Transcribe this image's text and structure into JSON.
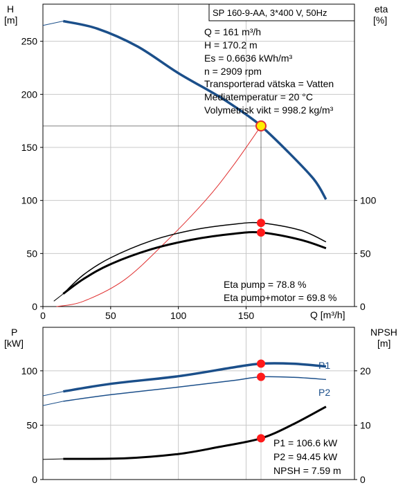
{
  "top": {
    "title": "SP 160-9-AA, 3*400 V, 50Hz",
    "left_axis": {
      "label_line1": "H",
      "label_line2": "[m]",
      "range": [
        0,
        285
      ],
      "ticks": [
        0,
        50,
        100,
        150,
        200,
        250
      ]
    },
    "right_axis": {
      "label_line1": "eta",
      "label_line2": "[%]",
      "range": [
        0,
        285
      ],
      "ticks": [
        0,
        50,
        100
      ]
    },
    "x_axis": {
      "label": "Q [m³/h]",
      "range": [
        0,
        230
      ],
      "ticks": [
        0,
        50,
        100,
        150
      ]
    },
    "info_lines": [
      "Q = 161 m³/h",
      "H = 170.2 m",
      "Es = 0.6636 kWh/m³",
      "n = 2909 rpm",
      "Transporterad vätska = Vatten",
      "Mediatemperatur = 20 °C",
      "Volymetrisk vikt = 998.2 kg/m³"
    ],
    "eta_lines": [
      "Eta pump = 78.8 %",
      "Eta pump+motor = 69.8 %"
    ]
  },
  "bottom": {
    "left_axis": {
      "label_line1": "P",
      "label_line2": "[kW]",
      "range": [
        0,
        140
      ],
      "ticks": [
        0,
        50,
        100
      ]
    },
    "right_axis": {
      "label_line1": "NPSH",
      "label_line2": "[m]",
      "range": [
        0,
        28
      ],
      "ticks": [
        0,
        10,
        20
      ]
    },
    "x_axis": {
      "range": [
        0,
        230
      ]
    },
    "series_labels": {
      "p1": "P1",
      "p2": "P2"
    },
    "info_lines": [
      "P1 = 106.6 kW",
      "P2 = 94.45 kW",
      "NPSH = 7.59 m"
    ]
  },
  "colors": {
    "head": "#1b4f8a",
    "power": "#1b4f8a",
    "efficiency": "#000000",
    "system": "#e03030",
    "marker": "#ff1a1a",
    "duty_fill": "#ffee00",
    "grid": "#c8c8c8"
  },
  "chart_data": [
    {
      "type": "line",
      "x_unit": "Q [m³/h]",
      "series": [
        {
          "key": "head",
          "axis": "left",
          "dashed_start": [
            [
              0,
              265
            ],
            [
              15,
              269
            ]
          ],
          "points": [
            [
              15,
              269
            ],
            [
              40,
              262
            ],
            [
              70,
              245
            ],
            [
              100,
              220
            ],
            [
              130,
              198
            ],
            [
              150,
              181
            ],
            [
              161,
              170.2
            ],
            [
              180,
              147
            ],
            [
              200,
              120
            ],
            [
              209,
              101
            ]
          ]
        },
        {
          "key": "system",
          "axis": "left",
          "points": [
            [
              10,
              0
            ],
            [
              30,
              5
            ],
            [
              60,
              25
            ],
            [
              90,
              60
            ],
            [
              120,
              100
            ],
            [
              140,
              132
            ],
            [
              161,
              170.2
            ]
          ]
        },
        {
          "key": "eta_pump",
          "axis": "right",
          "points": [
            [
              15,
              12
            ],
            [
              30,
              30
            ],
            [
              50,
              46
            ],
            [
              80,
              62
            ],
            [
              110,
              72
            ],
            [
              140,
              77.5
            ],
            [
              161,
              78.8
            ],
            [
              190,
              72
            ],
            [
              209,
              61
            ]
          ]
        },
        {
          "key": "eta_total",
          "axis": "right",
          "dashed_start": [
            [
              8,
              5
            ],
            [
              15,
              12
            ]
          ],
          "points": [
            [
              15,
              12
            ],
            [
              30,
              26
            ],
            [
              50,
              40
            ],
            [
              80,
              54
            ],
            [
              110,
              63
            ],
            [
              140,
              68.5
            ],
            [
              161,
              69.8
            ],
            [
              190,
              63
            ],
            [
              209,
              55
            ]
          ]
        }
      ],
      "markers": [
        {
          "x": 161,
          "y": 170.2,
          "axis": "left",
          "duty": true
        },
        {
          "x": 161,
          "y": 78.8,
          "axis": "right"
        },
        {
          "x": 161,
          "y": 69.8,
          "axis": "right"
        }
      ]
    },
    {
      "type": "line",
      "x_unit": "Q [m³/h]",
      "series": [
        {
          "key": "P1",
          "axis": "left",
          "dashed_start": [
            [
              0,
              77
            ],
            [
              15,
              81
            ]
          ],
          "points": [
            [
              15,
              81
            ],
            [
              50,
              88
            ],
            [
              100,
              95
            ],
            [
              140,
              103
            ],
            [
              161,
              106.6
            ],
            [
              185,
              106.5
            ],
            [
              209,
              104
            ]
          ]
        },
        {
          "key": "P2",
          "axis": "left",
          "dashed_start": [
            [
              0,
              68
            ],
            [
              15,
              72
            ]
          ],
          "points": [
            [
              15,
              72
            ],
            [
              50,
              78
            ],
            [
              100,
              85
            ],
            [
              140,
              91
            ],
            [
              161,
              94.45
            ],
            [
              185,
              94
            ],
            [
              209,
              92
            ]
          ]
        },
        {
          "key": "NPSH",
          "axis": "right",
          "dashed_start": [
            [
              0,
              3.7
            ],
            [
              15,
              3.8
            ]
          ],
          "points": [
            [
              15,
              3.8
            ],
            [
              60,
              3.9
            ],
            [
              100,
              4.7
            ],
            [
              130,
              6.0
            ],
            [
              161,
              7.59
            ],
            [
              185,
              10.2
            ],
            [
              209,
              13.4
            ]
          ]
        }
      ],
      "markers": [
        {
          "x": 161,
          "y": 106.6,
          "axis": "left"
        },
        {
          "x": 161,
          "y": 94.45,
          "axis": "left"
        },
        {
          "x": 161,
          "y": 7.59,
          "axis": "right"
        }
      ]
    }
  ]
}
